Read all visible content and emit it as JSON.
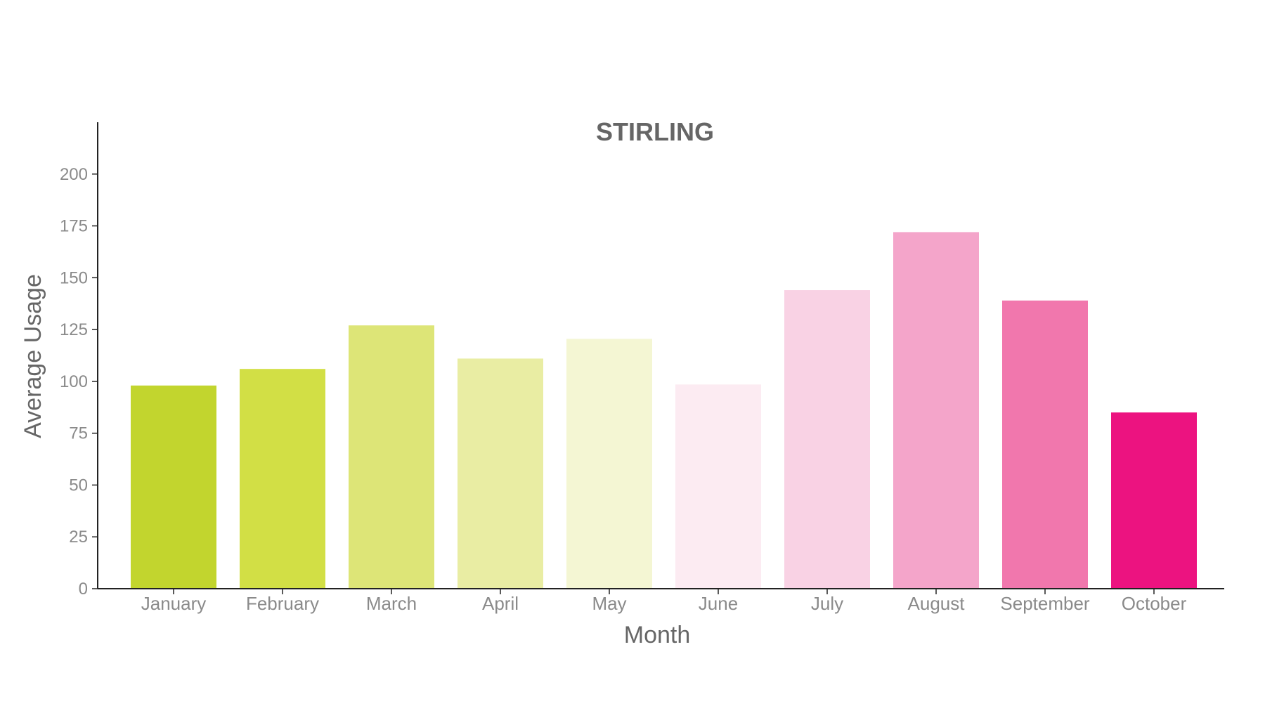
{
  "chart_data": {
    "type": "bar",
    "title": "STIRLING",
    "xlabel": "Month",
    "ylabel": "Average Usage",
    "categories": [
      "January",
      "February",
      "March",
      "April",
      "May",
      "June",
      "July",
      "August",
      "September",
      "October"
    ],
    "values": [
      98,
      106,
      127,
      111,
      120.5,
      98.5,
      144,
      172,
      139,
      85
    ],
    "colors": [
      "#c2d52e",
      "#d2df45",
      "#dde577",
      "#e9eda3",
      "#f4f6d3",
      "#fcebf2",
      "#f9d2e4",
      "#f4a5ca",
      "#f177ad",
      "#ec1380"
    ],
    "ylim": [
      0,
      225
    ],
    "yticks": [
      0,
      25,
      50,
      75,
      100,
      125,
      150,
      175,
      200
    ],
    "grid": false,
    "legend": "none"
  }
}
